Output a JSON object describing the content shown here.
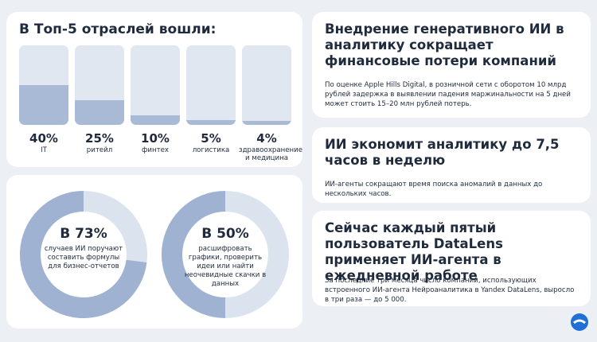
{
  "chart_data": [
    {
      "type": "bar",
      "title": "В Топ-5 отраслей вошли:",
      "categories": [
        "IT",
        "ритейл",
        "финтех",
        "логистика",
        "здравоохранение и медицина"
      ],
      "values": [
        40,
        25,
        10,
        5,
        4
      ],
      "value_labels": [
        "40%",
        "25%",
        "10%",
        "5%",
        "4%"
      ],
      "ylim": [
        0,
        80
      ],
      "color": "#a9bad6"
    },
    {
      "type": "donut",
      "values": [
        73
      ],
      "value_labels": [
        "В 73%"
      ],
      "caption": "случаев ИИ поручают составить формулы для бизнес-отчетов",
      "color": "#9fb2d2"
    },
    {
      "type": "donut",
      "values": [
        50
      ],
      "value_labels": [
        "В 50%"
      ],
      "caption": "расшифровать графики, проверить идеи или найти неочевидные скачки в данных",
      "color": "#9fb2d2"
    }
  ],
  "cards": [
    {
      "title": "Внедрение генеративного ИИ в аналитику сокращает финансовые потери компаний",
      "text": "По оценке Apple Hills Digital, в розничной сети с оборотом 10 млрд рублей задержка в выявлении падения маржинальности на 5 дней может стоить 15–20 млн рублей потерь."
    },
    {
      "title": "ИИ экономит аналитику до 7,5 часов в неделю",
      "text": "ИИ-агенты сокращают время поиска аномалий в данных до нескольких часов."
    },
    {
      "title": "Сейчас каждый пятый пользователь DataLens применяет ИИ-агента в ежедневной работе",
      "text": "За последние три месяца число компаний, использующих встроенного ИИ-агента Нейроаналитика в Yandex DataLens, выросло в три раза — до 5 000."
    }
  ]
}
